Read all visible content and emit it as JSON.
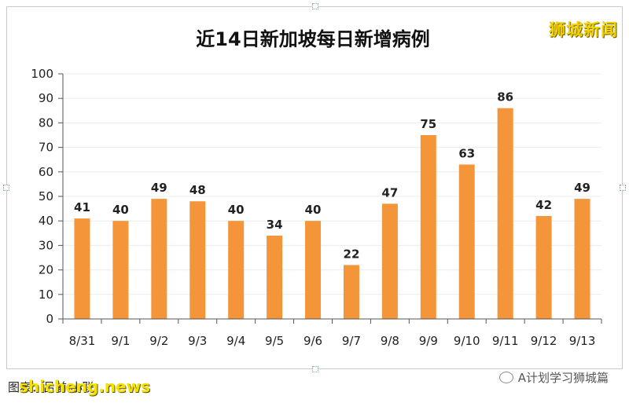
{
  "watermark": "狮城新闻",
  "source_text": "图表：吕前·小联",
  "site_text": "shicheng.news",
  "wechat_text": "A计划学习狮城篇",
  "chart_data": {
    "type": "bar",
    "title": "近14日新加坡每日新增病例",
    "categories": [
      "8/31",
      "9/1",
      "9/2",
      "9/3",
      "9/4",
      "9/5",
      "9/6",
      "9/7",
      "9/8",
      "9/9",
      "9/10",
      "9/11",
      "9/12",
      "9/13"
    ],
    "values": [
      41,
      40,
      49,
      48,
      40,
      34,
      40,
      22,
      47,
      75,
      63,
      86,
      42,
      49
    ],
    "ylim": [
      0,
      100
    ],
    "yticks": [
      0,
      10,
      20,
      30,
      40,
      50,
      60,
      70,
      80,
      90,
      100
    ],
    "grid": true,
    "bar_color": "#f5953a"
  }
}
